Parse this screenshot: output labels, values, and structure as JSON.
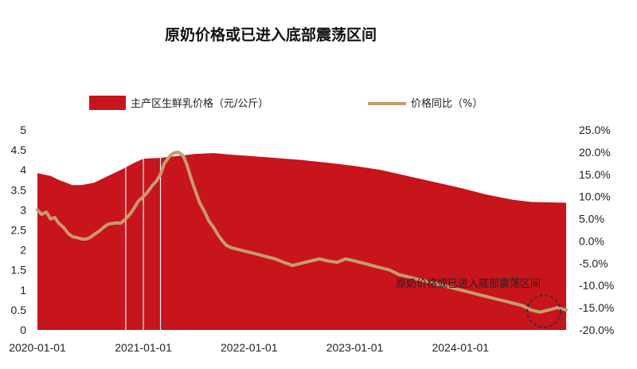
{
  "chart_data": {
    "type": "area+line",
    "title": "原奶价格或已进入底部震荡区间",
    "legend": {
      "placement": "top",
      "entries": [
        "主产区生鲜乳价格（元/公斤）",
        "价格同比（%）"
      ]
    },
    "colors": {
      "area": "#c8141b",
      "line": "#c79b6f",
      "highlight_circle": "#1c2a4a",
      "vlines": "#ffffff"
    },
    "x_tick_labels": [
      "2020-01-01",
      "2021-01-01",
      "2022-01-01",
      "2023-01-01",
      "2024-01-01"
    ],
    "x_range": [
      "2020-01-01",
      "2024-12-31"
    ],
    "y_left": {
      "min": 0,
      "max": 5,
      "step": 0.5,
      "tick_labels": [
        "0",
        "0.5",
        "1",
        "1.5",
        "2",
        "2.5",
        "3",
        "3.5",
        "4",
        "4.5",
        "5"
      ]
    },
    "y_right": {
      "min": -20,
      "max": 25,
      "step": 5,
      "tick_labels": [
        "-20.0%",
        "-15.0%",
        "-10.0%",
        "-5.0%",
        "0.0%",
        "5.0%",
        "10.0%",
        "15.0%",
        "20.0%",
        "25.0%"
      ]
    },
    "annotation": "原奶价格或已进入底部震荡区间",
    "series": [
      {
        "name": "主产区生鲜乳价格（元/公斤）",
        "kind": "area",
        "axis": "left",
        "points": [
          [
            "2020-01-01",
            3.92
          ],
          [
            "2020-02-15",
            3.85
          ],
          [
            "2020-03-15",
            3.75
          ],
          [
            "2020-05-01",
            3.62
          ],
          [
            "2020-06-01",
            3.62
          ],
          [
            "2020-07-15",
            3.68
          ],
          [
            "2020-09-01",
            3.85
          ],
          [
            "2020-10-15",
            4.0
          ],
          [
            "2020-12-01",
            4.18
          ],
          [
            "2021-01-01",
            4.28
          ],
          [
            "2021-03-01",
            4.3
          ],
          [
            "2021-05-01",
            4.35
          ],
          [
            "2021-07-01",
            4.4
          ],
          [
            "2021-09-01",
            4.42
          ],
          [
            "2021-11-01",
            4.38
          ],
          [
            "2022-01-01",
            4.35
          ],
          [
            "2022-04-01",
            4.3
          ],
          [
            "2022-07-01",
            4.25
          ],
          [
            "2022-10-01",
            4.18
          ],
          [
            "2023-01-01",
            4.1
          ],
          [
            "2023-04-01",
            4.0
          ],
          [
            "2023-07-01",
            3.85
          ],
          [
            "2023-10-01",
            3.7
          ],
          [
            "2024-01-01",
            3.55
          ],
          [
            "2024-04-01",
            3.38
          ],
          [
            "2024-07-01",
            3.25
          ],
          [
            "2024-09-01",
            3.2
          ],
          [
            "2024-12-31",
            3.18
          ]
        ]
      },
      {
        "name": "价格同比（%）",
        "kind": "line",
        "axis": "right",
        "points": [
          [
            "2020-01-01",
            7.0
          ],
          [
            "2020-01-15",
            6.0
          ],
          [
            "2020-02-01",
            6.5
          ],
          [
            "2020-02-15",
            5.0
          ],
          [
            "2020-03-01",
            5.3
          ],
          [
            "2020-03-15",
            4.0
          ],
          [
            "2020-04-01",
            3.0
          ],
          [
            "2020-04-15",
            1.8
          ],
          [
            "2020-05-01",
            1.0
          ],
          [
            "2020-05-15",
            0.8
          ],
          [
            "2020-06-01",
            0.5
          ],
          [
            "2020-06-15",
            0.4
          ],
          [
            "2020-07-01",
            0.8
          ],
          [
            "2020-07-15",
            1.5
          ],
          [
            "2020-08-01",
            2.2
          ],
          [
            "2020-08-15",
            3.0
          ],
          [
            "2020-09-01",
            3.8
          ],
          [
            "2020-10-01",
            4.1
          ],
          [
            "2020-10-15",
            4.0
          ],
          [
            "2020-11-01",
            5.0
          ],
          [
            "2020-11-15",
            6.0
          ],
          [
            "2020-12-01",
            7.5
          ],
          [
            "2020-12-15",
            9.0
          ],
          [
            "2021-01-01",
            10.0
          ],
          [
            "2021-01-15",
            11.0
          ],
          [
            "2021-02-01",
            12.5
          ],
          [
            "2021-02-15",
            13.5
          ],
          [
            "2021-03-01",
            15.0
          ],
          [
            "2021-03-15",
            17.5
          ],
          [
            "2021-04-01",
            19.0
          ],
          [
            "2021-04-15",
            19.8
          ],
          [
            "2021-05-01",
            20.0
          ],
          [
            "2021-05-10",
            19.6
          ],
          [
            "2021-05-20",
            19.0
          ],
          [
            "2021-06-01",
            17.0
          ],
          [
            "2021-06-15",
            14.0
          ],
          [
            "2021-07-01",
            11.0
          ],
          [
            "2021-07-15",
            8.5
          ],
          [
            "2021-08-01",
            6.5
          ],
          [
            "2021-08-15",
            4.5
          ],
          [
            "2021-09-01",
            3.0
          ],
          [
            "2021-09-15",
            1.5
          ],
          [
            "2021-10-01",
            0.0
          ],
          [
            "2021-10-15",
            -1.0
          ],
          [
            "2021-11-01",
            -1.5
          ],
          [
            "2021-12-01",
            -2.0
          ],
          [
            "2022-01-01",
            -2.5
          ],
          [
            "2022-02-01",
            -3.0
          ],
          [
            "2022-03-01",
            -3.5
          ],
          [
            "2022-04-01",
            -4.0
          ],
          [
            "2022-05-01",
            -4.8
          ],
          [
            "2022-06-01",
            -5.5
          ],
          [
            "2022-07-01",
            -5.0
          ],
          [
            "2022-08-01",
            -4.5
          ],
          [
            "2022-09-01",
            -4.0
          ],
          [
            "2022-10-01",
            -4.5
          ],
          [
            "2022-11-01",
            -4.8
          ],
          [
            "2022-12-01",
            -4.0
          ],
          [
            "2023-01-01",
            -4.5
          ],
          [
            "2023-02-01",
            -5.0
          ],
          [
            "2023-03-01",
            -5.5
          ],
          [
            "2023-04-01",
            -6.0
          ],
          [
            "2023-05-01",
            -6.5
          ],
          [
            "2023-06-01",
            -7.5
          ],
          [
            "2023-07-01",
            -8.0
          ],
          [
            "2023-08-01",
            -8.5
          ],
          [
            "2023-09-01",
            -9.0
          ],
          [
            "2023-10-01",
            -9.5
          ],
          [
            "2023-11-01",
            -10.0
          ],
          [
            "2023-12-01",
            -10.5
          ],
          [
            "2024-01-01",
            -11.0
          ],
          [
            "2024-02-01",
            -11.5
          ],
          [
            "2024-03-01",
            -12.0
          ],
          [
            "2024-04-01",
            -12.5
          ],
          [
            "2024-05-01",
            -13.0
          ],
          [
            "2024-06-01",
            -13.5
          ],
          [
            "2024-07-01",
            -14.0
          ],
          [
            "2024-08-01",
            -14.5
          ],
          [
            "2024-09-01",
            -15.5
          ],
          [
            "2024-10-01",
            -16.0
          ],
          [
            "2024-11-01",
            -15.5
          ],
          [
            "2024-12-01",
            -15.0
          ],
          [
            "2024-12-31",
            -15.5
          ]
        ]
      }
    ],
    "vertical_lines": [
      "2020-11-01",
      "2021-01-01",
      "2021-03-01"
    ]
  }
}
